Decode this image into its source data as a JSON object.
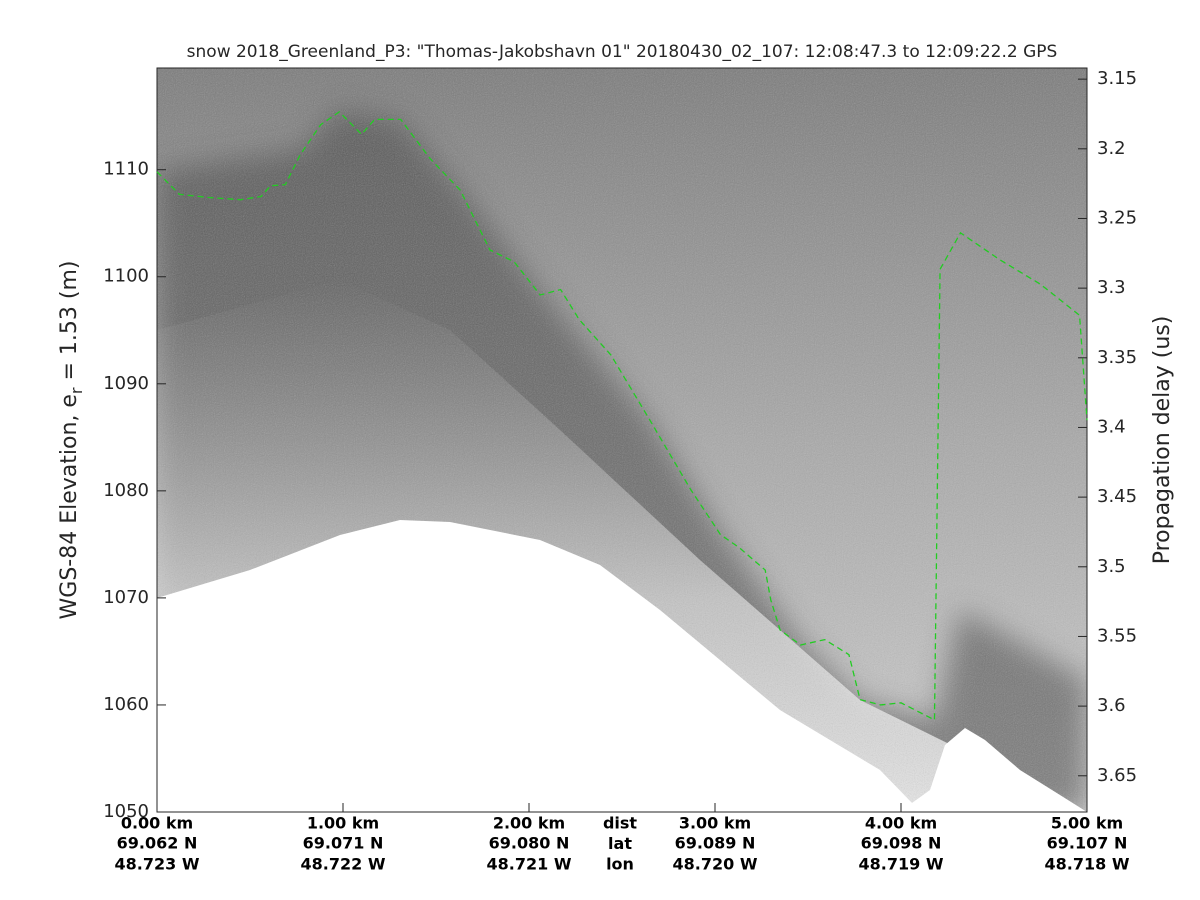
{
  "chart_data": {
    "type": "line",
    "title": "snow 2018_Greenland_P3: \"Thomas-Jakobshavn 01\"  20180430_02_107: 12:08:47.3 to 12:09:22.2 GPS",
    "ylabel_parts": [
      "WGS-84 Elevation, e",
      "r",
      " = 1.53 (m)"
    ],
    "y2label": "Propagation delay (us)",
    "xlim": [
      0,
      5
    ],
    "xticks": [
      {
        "value": 0,
        "label": "0.00 km"
      },
      {
        "value": 1,
        "label": "1.00 km"
      },
      {
        "value": 2,
        "label": "2.00 km"
      },
      {
        "value": 3,
        "label": "3.00 km"
      },
      {
        "value": 4,
        "label": "4.00 km"
      },
      {
        "value": 5,
        "label": "5.00 km"
      }
    ],
    "xtick_lat": [
      "69.062 N",
      "69.071 N",
      "69.080 N",
      "69.089 N",
      "69.098 N",
      "69.107 N"
    ],
    "xtick_lon": [
      "48.723 W",
      "48.722 W",
      "48.721 W",
      "48.720 W",
      "48.719 W",
      "48.718 W"
    ],
    "xtick_rows": [
      "dist",
      "lat",
      "lon"
    ],
    "ylim": [
      1050,
      1119.5
    ],
    "yticks": [
      1050,
      1060,
      1070,
      1080,
      1090,
      1100,
      1110
    ],
    "y2lim": [
      3.676,
      3.142
    ],
    "y2ticks": [
      3.15,
      3.2,
      3.25,
      3.3,
      3.35,
      3.4,
      3.45,
      3.5,
      3.55,
      3.6,
      3.65
    ],
    "series": [
      {
        "color": "#22cc22",
        "x": [
          0,
          0.12,
          0.28,
          0.45,
          0.56,
          0.61,
          0.69,
          0.77,
          0.88,
          0.98,
          1.1,
          1.17,
          1.31,
          1.47,
          1.63,
          1.79,
          1.92,
          2.06,
          2.17,
          2.27,
          2.44,
          2.65,
          2.87,
          3.03,
          3.13,
          3.27,
          3.3,
          3.35,
          3.46,
          3.59,
          3.72,
          3.78,
          3.89,
          4.0,
          4.18,
          4.21,
          4.32,
          4.53,
          4.75,
          4.96,
          5.0
        ],
        "values": [
          1109.8,
          1107.7,
          1107.4,
          1107.2,
          1107.5,
          1108.5,
          1108.6,
          1111.4,
          1114.2,
          1115.4,
          1113.3,
          1114.7,
          1114.7,
          1111,
          1108.1,
          1102.5,
          1101.4,
          1098.3,
          1098.8,
          1096,
          1092.7,
          1086.6,
          1080.1,
          1075.9,
          1074.7,
          1072.6,
          1069.8,
          1067,
          1065.6,
          1066.1,
          1064.7,
          1060.5,
          1060,
          1060.2,
          1058.6,
          1100.7,
          1104.1,
          1101.6,
          1099.3,
          1096.4,
          1086.6
        ]
      }
    ]
  }
}
